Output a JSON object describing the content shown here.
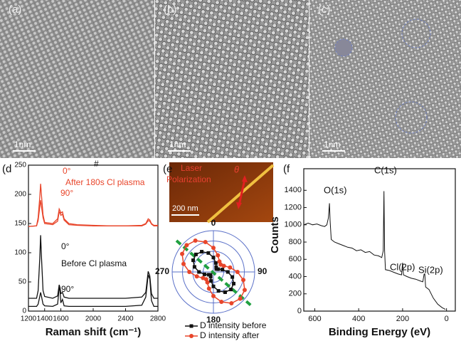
{
  "panels": [
    {
      "label": "(a)",
      "scale_bar": "1nm"
    },
    {
      "label": "(b)",
      "scale_bar": "1nm"
    },
    {
      "label": "(c)",
      "scale_bar": "1nm"
    }
  ],
  "afm": {
    "label": "(e",
    "laser": "Laser",
    "polarization": "Polarization",
    "angle": "θ",
    "scale_bar": "200 nm"
  },
  "chart_data": [
    {
      "type": "line",
      "label": "(d",
      "xlabel": "Raman shift (cm⁻¹)",
      "x": [
        1200,
        1300,
        1320,
        1340,
        1350,
        1360,
        1380,
        1400,
        1500,
        1560,
        1580,
        1590,
        1600,
        1620,
        1640,
        1700,
        1800,
        2000,
        2200,
        2400,
        2600,
        2650,
        2680,
        2700,
        2720,
        2750,
        2800
      ],
      "series": [
        {
          "color": "#111111",
          "values": [
            22,
            22,
            35,
            90,
            130,
            95,
            35,
            25,
            22,
            26,
            45,
            40,
            30,
            32,
            24,
            22,
            22,
            22,
            22,
            22,
            24,
            32,
            68,
            60,
            30,
            22,
            22
          ]
        },
        {
          "color": "#111111",
          "values": [
            8,
            8,
            12,
            25,
            32,
            26,
            12,
            9,
            8,
            12,
            40,
            35,
            14,
            20,
            9,
            8,
            8,
            8,
            8,
            8,
            10,
            24,
            62,
            55,
            18,
            8,
            8
          ]
        },
        {
          "color": "#e8452a",
          "values": [
            145,
            146,
            160,
            195,
            218,
            200,
            165,
            152,
            150,
            158,
            175,
            172,
            168,
            170,
            158,
            150,
            148,
            147,
            146,
            146,
            147,
            150,
            158,
            156,
            150,
            147,
            147
          ]
        },
        {
          "color": "#e8452a",
          "values": [
            145,
            146,
            155,
            178,
            190,
            180,
            160,
            150,
            148,
            154,
            170,
            168,
            164,
            166,
            156,
            148,
            147,
            146,
            146,
            146,
            146,
            149,
            155,
            154,
            149,
            146,
            146
          ]
        }
      ],
      "xlim": [
        1200,
        2800
      ],
      "xticks": [
        1200,
        1400,
        1600,
        2000,
        2400,
        2800
      ],
      "ylim": [
        0,
        250
      ],
      "yticks": [
        0,
        50,
        100,
        150,
        200,
        250
      ],
      "annotations": [
        "0°",
        "After 180s Cl plasma",
        "90°",
        "0°",
        "Before Cl plasma",
        "90°",
        "#"
      ]
    },
    {
      "type": "polar",
      "theta": [
        0,
        15,
        30,
        45,
        60,
        75,
        90,
        105,
        120,
        135,
        150,
        165,
        180,
        195,
        210,
        225,
        240,
        255,
        270,
        285,
        300,
        315,
        330,
        345
      ],
      "series": [
        {
          "name": "D intensity before",
          "color": "#111111",
          "marker": "square",
          "values": [
            0.42,
            0.27,
            0.16,
            0.12,
            0.16,
            0.27,
            0.42,
            0.57,
            0.68,
            0.72,
            0.68,
            0.57,
            0.42,
            0.27,
            0.16,
            0.12,
            0.16,
            0.27,
            0.42,
            0.57,
            0.68,
            0.72,
            0.68,
            0.57
          ]
        },
        {
          "name": "D intensity after",
          "color": "#e8452a",
          "marker": "circle",
          "values": [
            0.7,
            0.5,
            0.35,
            0.3,
            0.35,
            0.5,
            0.7,
            0.9,
            1.05,
            1.1,
            1.05,
            0.9,
            0.7,
            0.5,
            0.35,
            0.3,
            0.35,
            0.5,
            0.7,
            0.9,
            1.05,
            1.1,
            1.05,
            0.9
          ]
        }
      ],
      "rlim": [
        0,
        1.2
      ],
      "thetaticks": [
        0,
        90,
        180,
        270
      ]
    },
    {
      "type": "line",
      "label": "(f",
      "xlabel": "Binding Energy (eV)",
      "ylabel": "Counts",
      "x": [
        650,
        630,
        610,
        590,
        570,
        555,
        545,
        538,
        533,
        530,
        525,
        510,
        490,
        470,
        450,
        430,
        410,
        390,
        370,
        350,
        330,
        310,
        295,
        288,
        285,
        282,
        278,
        260,
        240,
        220,
        205,
        200,
        196,
        180,
        160,
        140,
        120,
        108,
        102,
        99,
        95,
        80,
        60,
        40,
        20,
        5
      ],
      "series": [
        {
          "color": "#111111",
          "values": [
            1000,
            1020,
            1000,
            1010,
            990,
            980,
            1000,
            1080,
            1250,
            1050,
            830,
            800,
            780,
            760,
            740,
            730,
            700,
            710,
            680,
            690,
            650,
            640,
            620,
            700,
            1390,
            700,
            480,
            470,
            450,
            430,
            420,
            560,
            420,
            400,
            380,
            370,
            350,
            340,
            430,
            430,
            280,
            250,
            150,
            80,
            40,
            20
          ]
        }
      ],
      "xlim": [
        650,
        -40
      ],
      "xticks": [
        600,
        400,
        200,
        0
      ],
      "ylim": [
        0,
        1650
      ],
      "yticks": [
        0,
        200,
        400,
        600,
        800,
        1000,
        1200,
        1400
      ],
      "annotations": [
        "O(1s)",
        "C(1s)",
        "Cl(2p)",
        "Si(2p)"
      ]
    }
  ]
}
